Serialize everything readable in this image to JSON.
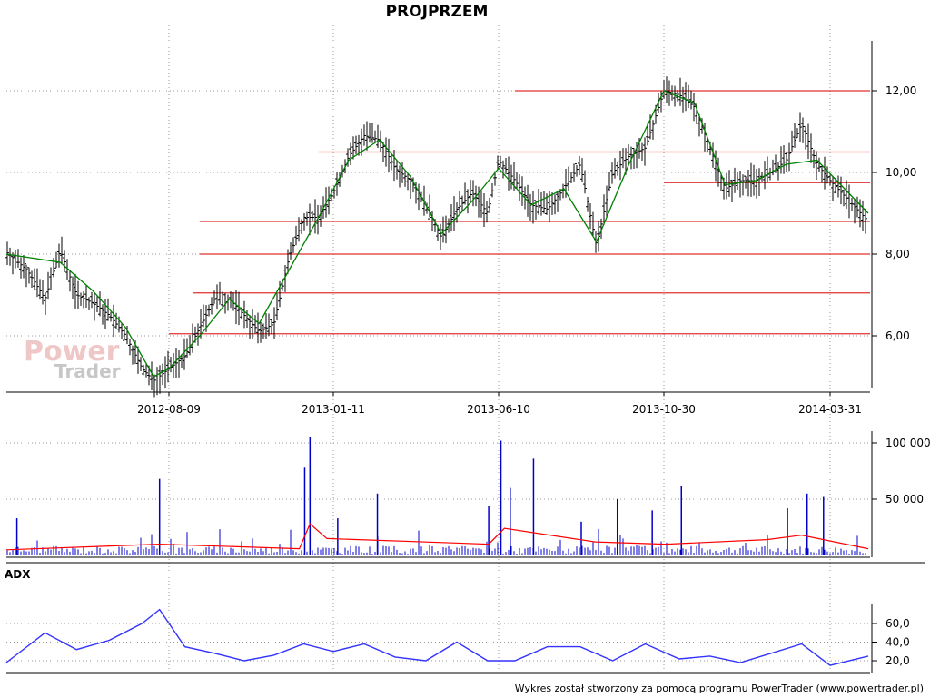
{
  "chart_data": [
    {
      "panel": "price",
      "type": "line",
      "title": "PROJPRZEM",
      "ylim": [
        4.6,
        13.3
      ],
      "y_ticks": [
        6,
        8,
        10,
        12
      ],
      "y_tick_labels": [
        "6,00",
        "8,00",
        "10,00",
        "12,00"
      ],
      "x_ticks": [
        "2012-08-09",
        "2013-01-11",
        "2013-06-10",
        "2013-10-30",
        "2014-03-31"
      ],
      "grid": true,
      "series": [
        {
          "style": "bars",
          "x": [
            "2012-03-23",
            "2012-04-10",
            "2012-04-25",
            "2012-05-08",
            "2012-05-22",
            "2012-06-05",
            "2012-06-19",
            "2012-07-03",
            "2012-07-17",
            "2012-07-27",
            "2012-08-09",
            "2012-08-24",
            "2012-09-07",
            "2012-09-21",
            "2012-10-05",
            "2012-10-19",
            "2012-11-02",
            "2012-11-16",
            "2012-11-30",
            "2012-12-14",
            "2012-12-28",
            "2013-01-11",
            "2013-01-25",
            "2013-02-08",
            "2013-02-22",
            "2013-03-08",
            "2013-03-22",
            "2013-04-05",
            "2013-04-19",
            "2013-05-03",
            "2013-05-17",
            "2013-05-31",
            "2013-06-10",
            "2013-06-24",
            "2013-07-08",
            "2013-07-22",
            "2013-08-05",
            "2013-08-19",
            "2013-09-02",
            "2013-09-16",
            "2013-09-30",
            "2013-10-14",
            "2013-10-30",
            "2013-11-13",
            "2013-11-27",
            "2013-12-11",
            "2013-12-25",
            "2014-01-08",
            "2014-01-22",
            "2014-02-05",
            "2014-02-19",
            "2014-03-05",
            "2014-03-19",
            "2014-03-31",
            "2014-04-10"
          ],
          "close": [
            8.05,
            7.6,
            6.9,
            8.1,
            7.0,
            6.8,
            6.5,
            6.0,
            5.2,
            4.9,
            5.2,
            5.5,
            6.2,
            6.9,
            6.9,
            6.5,
            6.1,
            6.3,
            7.9,
            8.9,
            8.9,
            9.5,
            10.4,
            10.9,
            10.8,
            10.1,
            9.8,
            9.2,
            8.4,
            9.1,
            9.5,
            9.0,
            10.3,
            9.8,
            9.2,
            9.1,
            9.6,
            10.2,
            8.2,
            10.0,
            10.4,
            10.6,
            12.0,
            11.9,
            11.6,
            10.6,
            9.6,
            9.8,
            9.8,
            10.0,
            10.3,
            11.2,
            10.2,
            9.8,
            8.8
          ]
        },
        {
          "name": "",
          "style": "moving-average",
          "color": "#008000",
          "x": [
            "2012-03-23",
            "2012-05-08",
            "2012-06-05",
            "2012-07-03",
            "2012-07-27",
            "2012-08-09",
            "2012-09-07",
            "2012-10-05",
            "2012-11-02",
            "2012-11-30",
            "2012-12-28",
            "2013-01-25",
            "2013-02-22",
            "2013-03-22",
            "2013-04-19",
            "2013-05-17",
            "2013-06-10",
            "2013-07-08",
            "2013-08-05",
            "2013-09-02",
            "2013-09-30",
            "2013-10-30",
            "2013-11-27",
            "2013-12-25",
            "2014-01-22",
            "2014-02-19",
            "2014-03-19",
            "2014-04-10"
          ],
          "values": [
            8.0,
            7.8,
            7.1,
            6.2,
            5.0,
            5.2,
            6.0,
            6.9,
            6.3,
            7.6,
            8.9,
            10.3,
            10.8,
            9.9,
            8.5,
            9.3,
            10.1,
            9.2,
            9.6,
            8.3,
            10.2,
            12.0,
            11.7,
            9.7,
            9.8,
            10.2,
            10.3,
            9.0
          ]
        }
      ],
      "levels": [
        {
          "value": 12.0,
          "from": "2013-06-24",
          "color": "#e03030"
        },
        {
          "value": 10.5,
          "from": "2012-12-28",
          "color": "#e03030"
        },
        {
          "value": 9.75,
          "from": "2013-10-30",
          "color": "#e03030"
        },
        {
          "value": 8.8,
          "from": "2012-09-07",
          "color": "#e03030"
        },
        {
          "value": 8.0,
          "from": "2012-09-07",
          "color": "#e03030"
        },
        {
          "value": 7.05,
          "from": "2012-09-01",
          "color": "#e03030"
        },
        {
          "value": 6.05,
          "from": "2012-08-09",
          "color": "#e03030"
        }
      ]
    },
    {
      "panel": "volume",
      "type": "bar",
      "ylim": [
        0,
        110000
      ],
      "y_ticks": [
        50000,
        100000
      ],
      "y_tick_labels": [
        "50 000",
        "100 000"
      ],
      "grid": true,
      "series": [
        {
          "style": "bars",
          "color": "#0000cc",
          "x": [
            "2012-04-01",
            "2012-08-01",
            "2012-12-15",
            "2012-12-20",
            "2013-01-15",
            "2013-02-20",
            "2013-06-01",
            "2013-06-12",
            "2013-06-20",
            "2013-07-10",
            "2013-08-20",
            "2013-09-20",
            "2013-10-20",
            "2013-11-15",
            "2014-02-20",
            "2014-03-10",
            "2014-03-25"
          ],
          "values": [
            33000,
            68000,
            78000,
            105000,
            33000,
            55000,
            44000,
            102000,
            60000,
            86000,
            30000,
            50000,
            40000,
            62000,
            42000,
            55000,
            52000
          ]
        },
        {
          "name": "",
          "style": "moving-average",
          "color": "#ff0000",
          "x": [
            "2012-03-23",
            "2012-08-01",
            "2012-12-10",
            "2012-12-20",
            "2013-01-05",
            "2013-06-01",
            "2013-06-15",
            "2013-09-01",
            "2013-11-01",
            "2014-02-01",
            "2014-03-05",
            "2014-04-10"
          ],
          "values": [
            5000,
            10000,
            6000,
            28000,
            15000,
            10000,
            24000,
            12000,
            10000,
            14000,
            18000,
            6000
          ]
        }
      ]
    },
    {
      "panel": "adx",
      "type": "line",
      "title": "ADX",
      "ylim": [
        12,
        82
      ],
      "y_ticks": [
        20,
        40,
        60
      ],
      "y_tick_labels": [
        "20,0",
        "40,0",
        "60,0"
      ],
      "grid": true,
      "series": [
        {
          "name": "",
          "color": "#3333ff",
          "x": [
            "2012-03-23",
            "2012-04-25",
            "2012-05-22",
            "2012-06-19",
            "2012-07-17",
            "2012-08-01",
            "2012-08-24",
            "2012-09-21",
            "2012-10-19",
            "2012-11-16",
            "2012-12-14",
            "2013-01-11",
            "2013-02-08",
            "2013-03-08",
            "2013-04-05",
            "2013-05-03",
            "2013-05-31",
            "2013-06-24",
            "2013-07-22",
            "2013-08-19",
            "2013-09-16",
            "2013-10-14",
            "2013-11-13",
            "2013-12-11",
            "2014-01-08",
            "2014-02-05",
            "2014-03-05",
            "2014-03-31",
            "2014-04-10"
          ],
          "values": [
            18,
            50,
            32,
            42,
            60,
            75,
            35,
            28,
            20,
            26,
            38,
            30,
            38,
            24,
            20,
            40,
            20,
            20,
            35,
            35,
            20,
            38,
            22,
            25,
            18,
            28,
            38,
            15,
            25
          ]
        }
      ]
    }
  ],
  "footer": "Wykres został stworzony za pomocą programu PowerTrader (www.powertrader.pl)",
  "watermark": {
    "line1": "Power",
    "line2": "Trader"
  }
}
